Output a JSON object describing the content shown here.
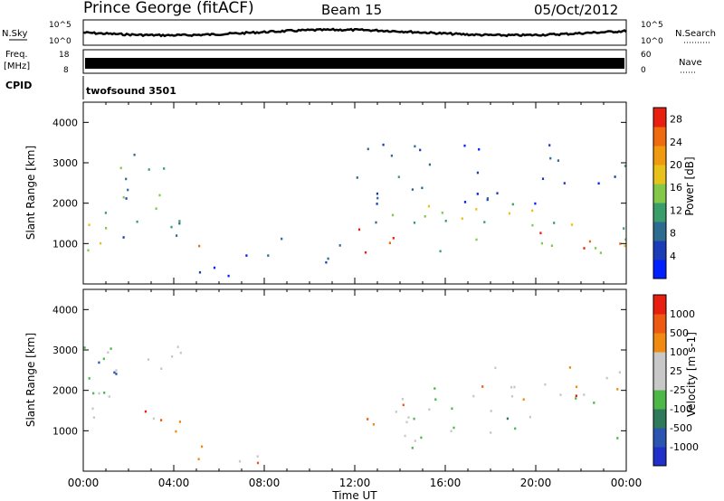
{
  "header": {
    "station": "Prince George (fitACF)",
    "beam": "Beam 15",
    "date": "05/Oct/2012"
  },
  "strip_labels": {
    "nsky": "N.Sky",
    "nsky_top": "10^5",
    "nsky_bot": "10^0",
    "freq_line1": "Freq.",
    "freq_line2": "[MHz]",
    "freq_top": "18",
    "freq_bot": "8",
    "cpid": "CPID",
    "nsearch": "N.Search",
    "nsearch_top": "10^5",
    "nsearch_bot": "10^0",
    "nave": "Nave",
    "nave_top": "60",
    "nave_bot": "0",
    "cpid_name": "twofsound  3501"
  },
  "x_axis": {
    "title": "Time UT",
    "ticks": [
      "00:00",
      "04:00",
      "08:00",
      "12:00",
      "16:00",
      "20:00",
      "00:00"
    ]
  },
  "colors": {
    "power": [
      "#0020ff",
      "#1a3cb8",
      "#2e6b91",
      "#3a9e6a",
      "#84c84a",
      "#e8c21a",
      "#f09a10",
      "#f06a10",
      "#e82010"
    ],
    "velocity": [
      "#2030c8",
      "#2a55b0",
      "#2e7a5a",
      "#4db848",
      "#c8c8c8",
      "#c8c8c8",
      "#f08a10",
      "#ee5a12",
      "#e81e10"
    ]
  },
  "chart_data": [
    {
      "type": "heatmap",
      "name": "power",
      "xlabel": "",
      "ylabel": "Slant Range [km]",
      "xlim": [
        0,
        24
      ],
      "ylim": [
        0,
        4500
      ],
      "yticks": [
        "1000",
        "2000",
        "3000",
        "4000"
      ],
      "colorbar": {
        "label": "Power [dB]",
        "ticks": [
          "4",
          "8",
          "12",
          "16",
          "20",
          "24",
          "28"
        ],
        "range": [
          0,
          30
        ]
      },
      "blobs": [
        {
          "x": [
            0.0,
            4.3
          ],
          "range": [
            800,
            3300
          ],
          "level": 0.35
        },
        {
          "x": [
            0.0,
            3.0
          ],
          "range": [
            1000,
            1600
          ],
          "level": 0.55
        },
        {
          "x": [
            4.5,
            5.3
          ],
          "range": [
            900,
            1500
          ],
          "level": 0.75
        },
        {
          "x": [
            5.0,
            11.5
          ],
          "range": [
            200,
            800
          ],
          "level": 0.15
        },
        {
          "x": [
            8.5,
            11.5
          ],
          "range": [
            800,
            1200
          ],
          "level": 0.25
        },
        {
          "x": [
            11.8,
            14.2
          ],
          "range": [
            800,
            1800
          ],
          "level": 0.92
        },
        {
          "x": [
            12.5,
            16.0
          ],
          "range": [
            1500,
            2600
          ],
          "level": 0.4
        },
        {
          "x": [
            14.5,
            24.0
          ],
          "range": [
            800,
            2000
          ],
          "level": 0.5
        },
        {
          "x": [
            19.0,
            24.0
          ],
          "range": [
            900,
            1400
          ],
          "level": 0.85
        },
        {
          "x": [
            12.0,
            24.0
          ],
          "range": [
            2000,
            3500
          ],
          "level": 0.2
        }
      ]
    },
    {
      "type": "heatmap",
      "name": "velocity",
      "xlabel": "Time UT",
      "ylabel": "Slant Range [km]",
      "xlim": [
        0,
        24
      ],
      "ylim": [
        0,
        4500
      ],
      "yticks": [
        "1000",
        "2000",
        "3000",
        "4000"
      ],
      "colorbar": {
        "label": "Velocity [m s-1]",
        "ticks": [
          "1000",
          "500",
          "100",
          "25",
          "-25",
          "-100",
          "-500",
          "-1000"
        ]
      },
      "blobs": [
        {
          "x": [
            0.0,
            4.5
          ],
          "range": [
            900,
            3200
          ],
          "level": 0.5
        },
        {
          "x": [
            0.0,
            2.0
          ],
          "range": [
            2200,
            3300
          ],
          "level": 0.3
        },
        {
          "x": [
            2.5,
            5.3
          ],
          "range": [
            900,
            1800
          ],
          "level": 0.72
        },
        {
          "x": [
            11.8,
            14.2
          ],
          "range": [
            800,
            1800
          ],
          "level": 0.8
        },
        {
          "x": [
            14.0,
            24.0
          ],
          "range": [
            600,
            2200
          ],
          "level": 0.5
        },
        {
          "x": [
            16.0,
            24.0
          ],
          "range": [
            1800,
            2600
          ],
          "level": 0.75
        },
        {
          "x": [
            5.0,
            11.5
          ],
          "range": [
            200,
            700
          ],
          "level": 0.65
        }
      ]
    }
  ]
}
